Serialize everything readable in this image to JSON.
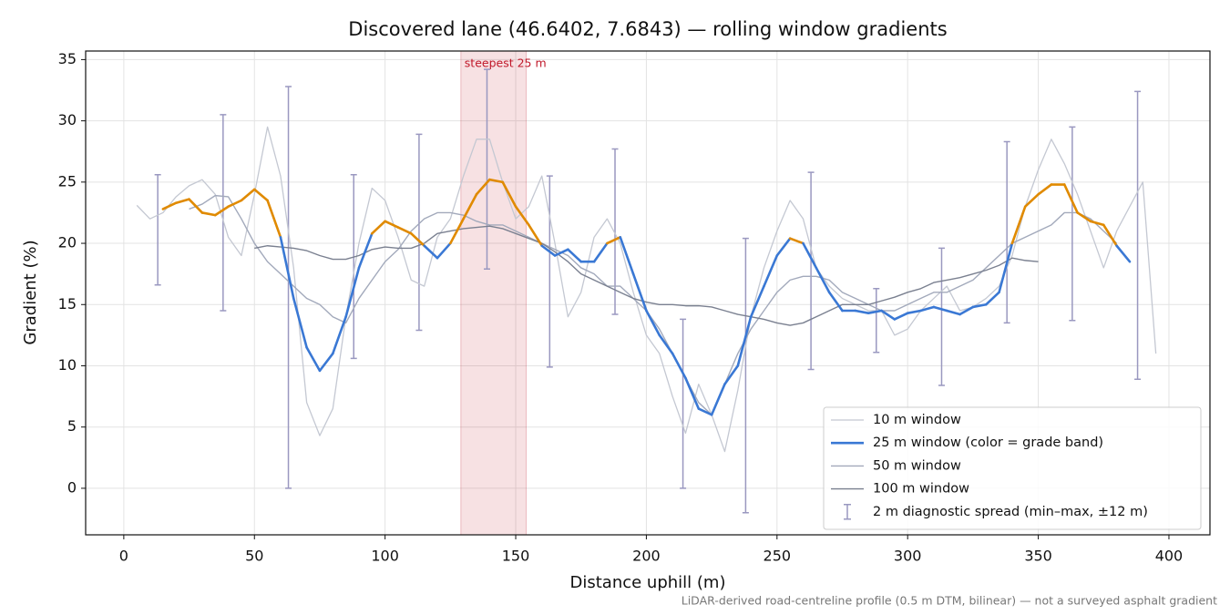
{
  "chart_data": {
    "type": "line",
    "title": "Discovered lane (46.6402, 7.6843) — rolling window gradients",
    "x_label": "Distance uphill (m)",
    "y_label": "Gradient (%)",
    "footnote": "LiDAR-derived road-centreline profile (0.5 m DTM, bilinear) — not a surveyed asphalt gradient",
    "xlim": [
      -14.6,
      415.7
    ],
    "ylim": [
      -3.8,
      35.7
    ],
    "xticks": [
      0,
      50,
      100,
      150,
      200,
      250,
      300,
      350,
      400
    ],
    "yticks": [
      0,
      5,
      10,
      15,
      20,
      25,
      30,
      35
    ],
    "grid": true,
    "legend": "lower right",
    "highlight": {
      "label": "steepest 25 m",
      "xlim": [
        129,
        154
      ],
      "color": "#c0182a"
    },
    "series": [
      {
        "name": "10 m window",
        "color": "#c4c8d2",
        "width": 1.3,
        "x": [
          5,
          10,
          15,
          20,
          25,
          30,
          35,
          40,
          45,
          50,
          55,
          60,
          65,
          70,
          75,
          80,
          85,
          90,
          95,
          100,
          105,
          110,
          115,
          120,
          125,
          130,
          135,
          140,
          145,
          150,
          155,
          160,
          165,
          170,
          175,
          180,
          185,
          190,
          195,
          200,
          205,
          210,
          215,
          220,
          225,
          230,
          235,
          240,
          245,
          250,
          255,
          260,
          265,
          270,
          275,
          280,
          285,
          290,
          295,
          300,
          305,
          310,
          315,
          320,
          325,
          330,
          335,
          340,
          345,
          350,
          355,
          360,
          365,
          370,
          375,
          380,
          385,
          390,
          395
        ],
        "values": [
          23.1,
          22.0,
          22.5,
          23.8,
          24.7,
          25.2,
          24.0,
          20.5,
          19.0,
          24.0,
          29.5,
          25.5,
          18.0,
          7.0,
          4.3,
          6.5,
          14.0,
          20.0,
          24.5,
          23.5,
          20.5,
          17.0,
          16.5,
          20.5,
          22.0,
          25.5,
          28.5,
          28.5,
          25.0,
          22.0,
          23.0,
          25.5,
          20.0,
          14.0,
          16.0,
          20.5,
          22.0,
          20.0,
          16.0,
          12.5,
          11.0,
          7.5,
          4.5,
          8.5,
          6.0,
          3.0,
          8.0,
          14.0,
          18.0,
          21.0,
          23.5,
          22.0,
          18.0,
          16.5,
          15.5,
          15.0,
          14.5,
          14.5,
          12.5,
          13.0,
          14.5,
          15.5,
          16.5,
          14.5,
          14.8,
          15.5,
          16.5,
          19.0,
          23.0,
          26.0,
          28.5,
          26.5,
          24.0,
          21.0,
          18.0,
          21.0,
          23.0,
          25.0,
          11.0
        ]
      },
      {
        "name": "25 m window (color = grade band)",
        "color": "#3a78d4",
        "width": 2.6,
        "color_above": "#e08a00",
        "threshold": 20,
        "x": [
          15,
          20,
          25,
          30,
          35,
          40,
          45,
          50,
          55,
          60,
          65,
          70,
          75,
          80,
          85,
          90,
          95,
          100,
          105,
          110,
          115,
          120,
          125,
          130,
          135,
          140,
          145,
          150,
          155,
          160,
          165,
          170,
          175,
          180,
          185,
          190,
          195,
          200,
          205,
          210,
          215,
          220,
          225,
          230,
          235,
          240,
          245,
          250,
          255,
          260,
          265,
          270,
          275,
          280,
          285,
          290,
          295,
          300,
          305,
          310,
          315,
          320,
          325,
          330,
          335,
          340,
          345,
          350,
          355,
          360,
          365,
          370,
          375,
          380,
          385
        ],
        "values": [
          22.8,
          23.3,
          23.6,
          22.5,
          22.3,
          23.0,
          23.5,
          24.4,
          23.5,
          20.5,
          15.5,
          11.5,
          9.6,
          11.0,
          14.0,
          18.0,
          20.8,
          21.8,
          21.3,
          20.8,
          19.8,
          18.8,
          20.0,
          22.0,
          24.0,
          25.2,
          25.0,
          23.0,
          21.5,
          19.8,
          19.0,
          19.5,
          18.5,
          18.5,
          20.0,
          20.5,
          17.5,
          14.5,
          12.5,
          11.0,
          9.0,
          6.5,
          6.0,
          8.5,
          10.0,
          14.0,
          16.5,
          19.0,
          20.4,
          20.0,
          18.0,
          16.0,
          14.5,
          14.5,
          14.3,
          14.5,
          13.8,
          14.3,
          14.5,
          14.8,
          14.5,
          14.2,
          14.8,
          15.0,
          16.0,
          20.0,
          23.0,
          24.0,
          24.8,
          24.8,
          22.5,
          21.8,
          21.5,
          19.8,
          18.5
        ]
      },
      {
        "name": "50 m window",
        "color": "#a2a9bb",
        "width": 1.4,
        "x": [
          25,
          30,
          35,
          40,
          45,
          50,
          55,
          60,
          65,
          70,
          75,
          80,
          85,
          90,
          95,
          100,
          105,
          110,
          115,
          120,
          125,
          130,
          135,
          140,
          145,
          150,
          155,
          160,
          165,
          170,
          175,
          180,
          185,
          190,
          195,
          200,
          205,
          210,
          215,
          220,
          225,
          230,
          235,
          240,
          245,
          250,
          255,
          260,
          265,
          270,
          275,
          280,
          285,
          290,
          295,
          300,
          305,
          310,
          315,
          320,
          325,
          330,
          335,
          340,
          345,
          350,
          355,
          360,
          365,
          370,
          375,
          380
        ],
        "values": [
          22.8,
          23.2,
          23.9,
          23.8,
          22.0,
          20.0,
          18.5,
          17.5,
          16.5,
          15.5,
          15.0,
          14.0,
          13.5,
          15.5,
          17.0,
          18.5,
          19.5,
          21.0,
          22.0,
          22.5,
          22.5,
          22.3,
          21.8,
          21.5,
          21.5,
          21.0,
          20.5,
          20.0,
          19.5,
          19.0,
          18.0,
          17.5,
          16.5,
          16.5,
          15.5,
          14.5,
          13.0,
          11.0,
          9.0,
          7.0,
          6.0,
          8.5,
          11.0,
          13.0,
          14.5,
          16.0,
          17.0,
          17.3,
          17.3,
          17.0,
          16.0,
          15.5,
          15.0,
          14.5,
          14.5,
          15.0,
          15.5,
          16.0,
          16.0,
          16.5,
          17.0,
          18.0,
          19.0,
          20.0,
          20.5,
          21.0,
          21.5,
          22.5,
          22.5,
          22.0,
          21.0,
          20.0
        ]
      },
      {
        "name": "100 m window",
        "color": "#7a8090",
        "width": 1.4,
        "x": [
          50,
          55,
          60,
          65,
          70,
          75,
          80,
          85,
          90,
          95,
          100,
          105,
          110,
          115,
          120,
          125,
          130,
          135,
          140,
          145,
          150,
          155,
          160,
          165,
          170,
          175,
          180,
          185,
          190,
          195,
          200,
          205,
          210,
          215,
          220,
          225,
          230,
          235,
          240,
          245,
          250,
          255,
          260,
          265,
          270,
          275,
          280,
          285,
          290,
          295,
          300,
          305,
          310,
          315,
          320,
          325,
          330,
          335,
          340,
          345,
          350
        ],
        "values": [
          19.6,
          19.8,
          19.7,
          19.6,
          19.4,
          19.0,
          18.7,
          18.7,
          19.0,
          19.5,
          19.7,
          19.6,
          19.6,
          20.0,
          20.8,
          21.0,
          21.2,
          21.3,
          21.4,
          21.2,
          20.8,
          20.4,
          20.0,
          19.3,
          18.5,
          17.5,
          17.0,
          16.5,
          16.0,
          15.5,
          15.2,
          15.0,
          15.0,
          14.9,
          14.9,
          14.8,
          14.5,
          14.2,
          14.0,
          13.8,
          13.5,
          13.3,
          13.5,
          14.0,
          14.5,
          15.0,
          15.0,
          15.0,
          15.3,
          15.6,
          16.0,
          16.3,
          16.8,
          17.0,
          17.2,
          17.5,
          17.8,
          18.2,
          18.8,
          18.6,
          18.5
        ]
      }
    ],
    "errorbars": {
      "name": "2 m diagnostic spread (min–max, ±12 m)",
      "color": "#9a98c0",
      "x": [
        13,
        38,
        63,
        88,
        113,
        139,
        163,
        188,
        214,
        238,
        263,
        288,
        313,
        338,
        363,
        388
      ],
      "low": [
        16.6,
        14.5,
        0,
        10.6,
        12.9,
        17.9,
        9.9,
        14.2,
        0,
        -2,
        9.7,
        11.1,
        8.4,
        13.5,
        13.7,
        8.9
      ],
      "high": [
        25.6,
        30.5,
        32.8,
        25.6,
        28.9,
        34.2,
        25.5,
        27.7,
        13.8,
        20.4,
        25.8,
        16.3,
        19.6,
        28.3,
        29.5,
        32.4
      ]
    }
  }
}
